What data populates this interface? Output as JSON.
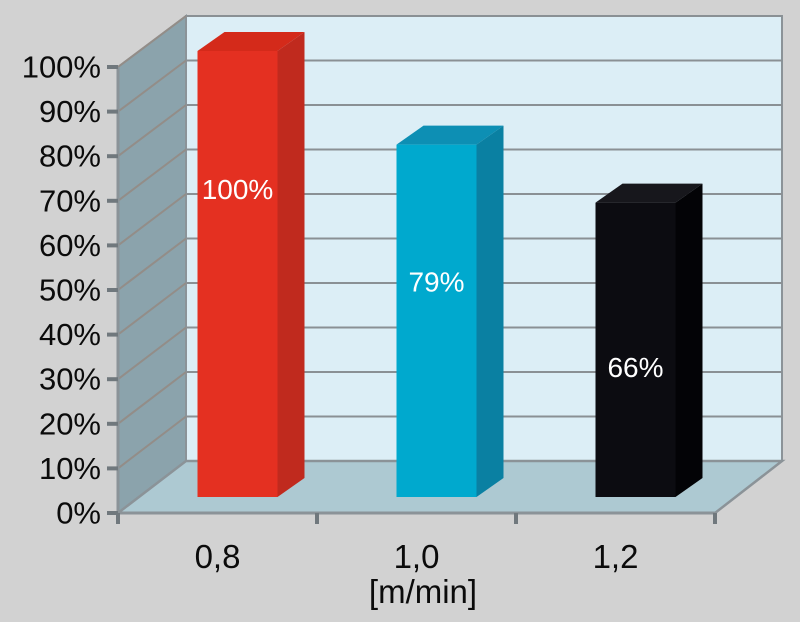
{
  "chart_data": {
    "type": "bar",
    "style": "3d-column",
    "title": "",
    "categories": [
      "0,8",
      "1,0",
      "1,2"
    ],
    "values": [
      100,
      79,
      66
    ],
    "bar_labels": [
      "100%",
      "79%",
      "66%"
    ],
    "series_names": [
      "red",
      "cyan",
      "black"
    ],
    "xlabel": "[m/min]",
    "ylabel": "",
    "ylim": [
      0,
      100
    ],
    "ytick_step": 10,
    "ytick_labels": [
      "0%",
      "10%",
      "20%",
      "30%",
      "40%",
      "50%",
      "60%",
      "70%",
      "80%",
      "90%",
      "100%"
    ],
    "grid": true,
    "legend": false
  },
  "colors": {
    "background": "#d2d2d2",
    "wall_left": "#8ba3ac",
    "wall_back": "#dceef6",
    "floor": "#adc9d2",
    "grid_back": "#8a9094",
    "grid_wall": "#938d88",
    "frame": "#8b9398",
    "tick": "#70787d",
    "tick_text": "#0b0b0b",
    "bar_label_text": "#ffffff",
    "bars": [
      {
        "name": "red",
        "front": "#e43021",
        "top": "#d42a1a",
        "side": "#c02a1e"
      },
      {
        "name": "cyan",
        "front": "#00a9ce",
        "top": "#0d8fb4",
        "side": "#0a80a2"
      },
      {
        "name": "black",
        "front": "#0c0c11",
        "top": "#17171c",
        "side": "#030306"
      }
    ]
  }
}
